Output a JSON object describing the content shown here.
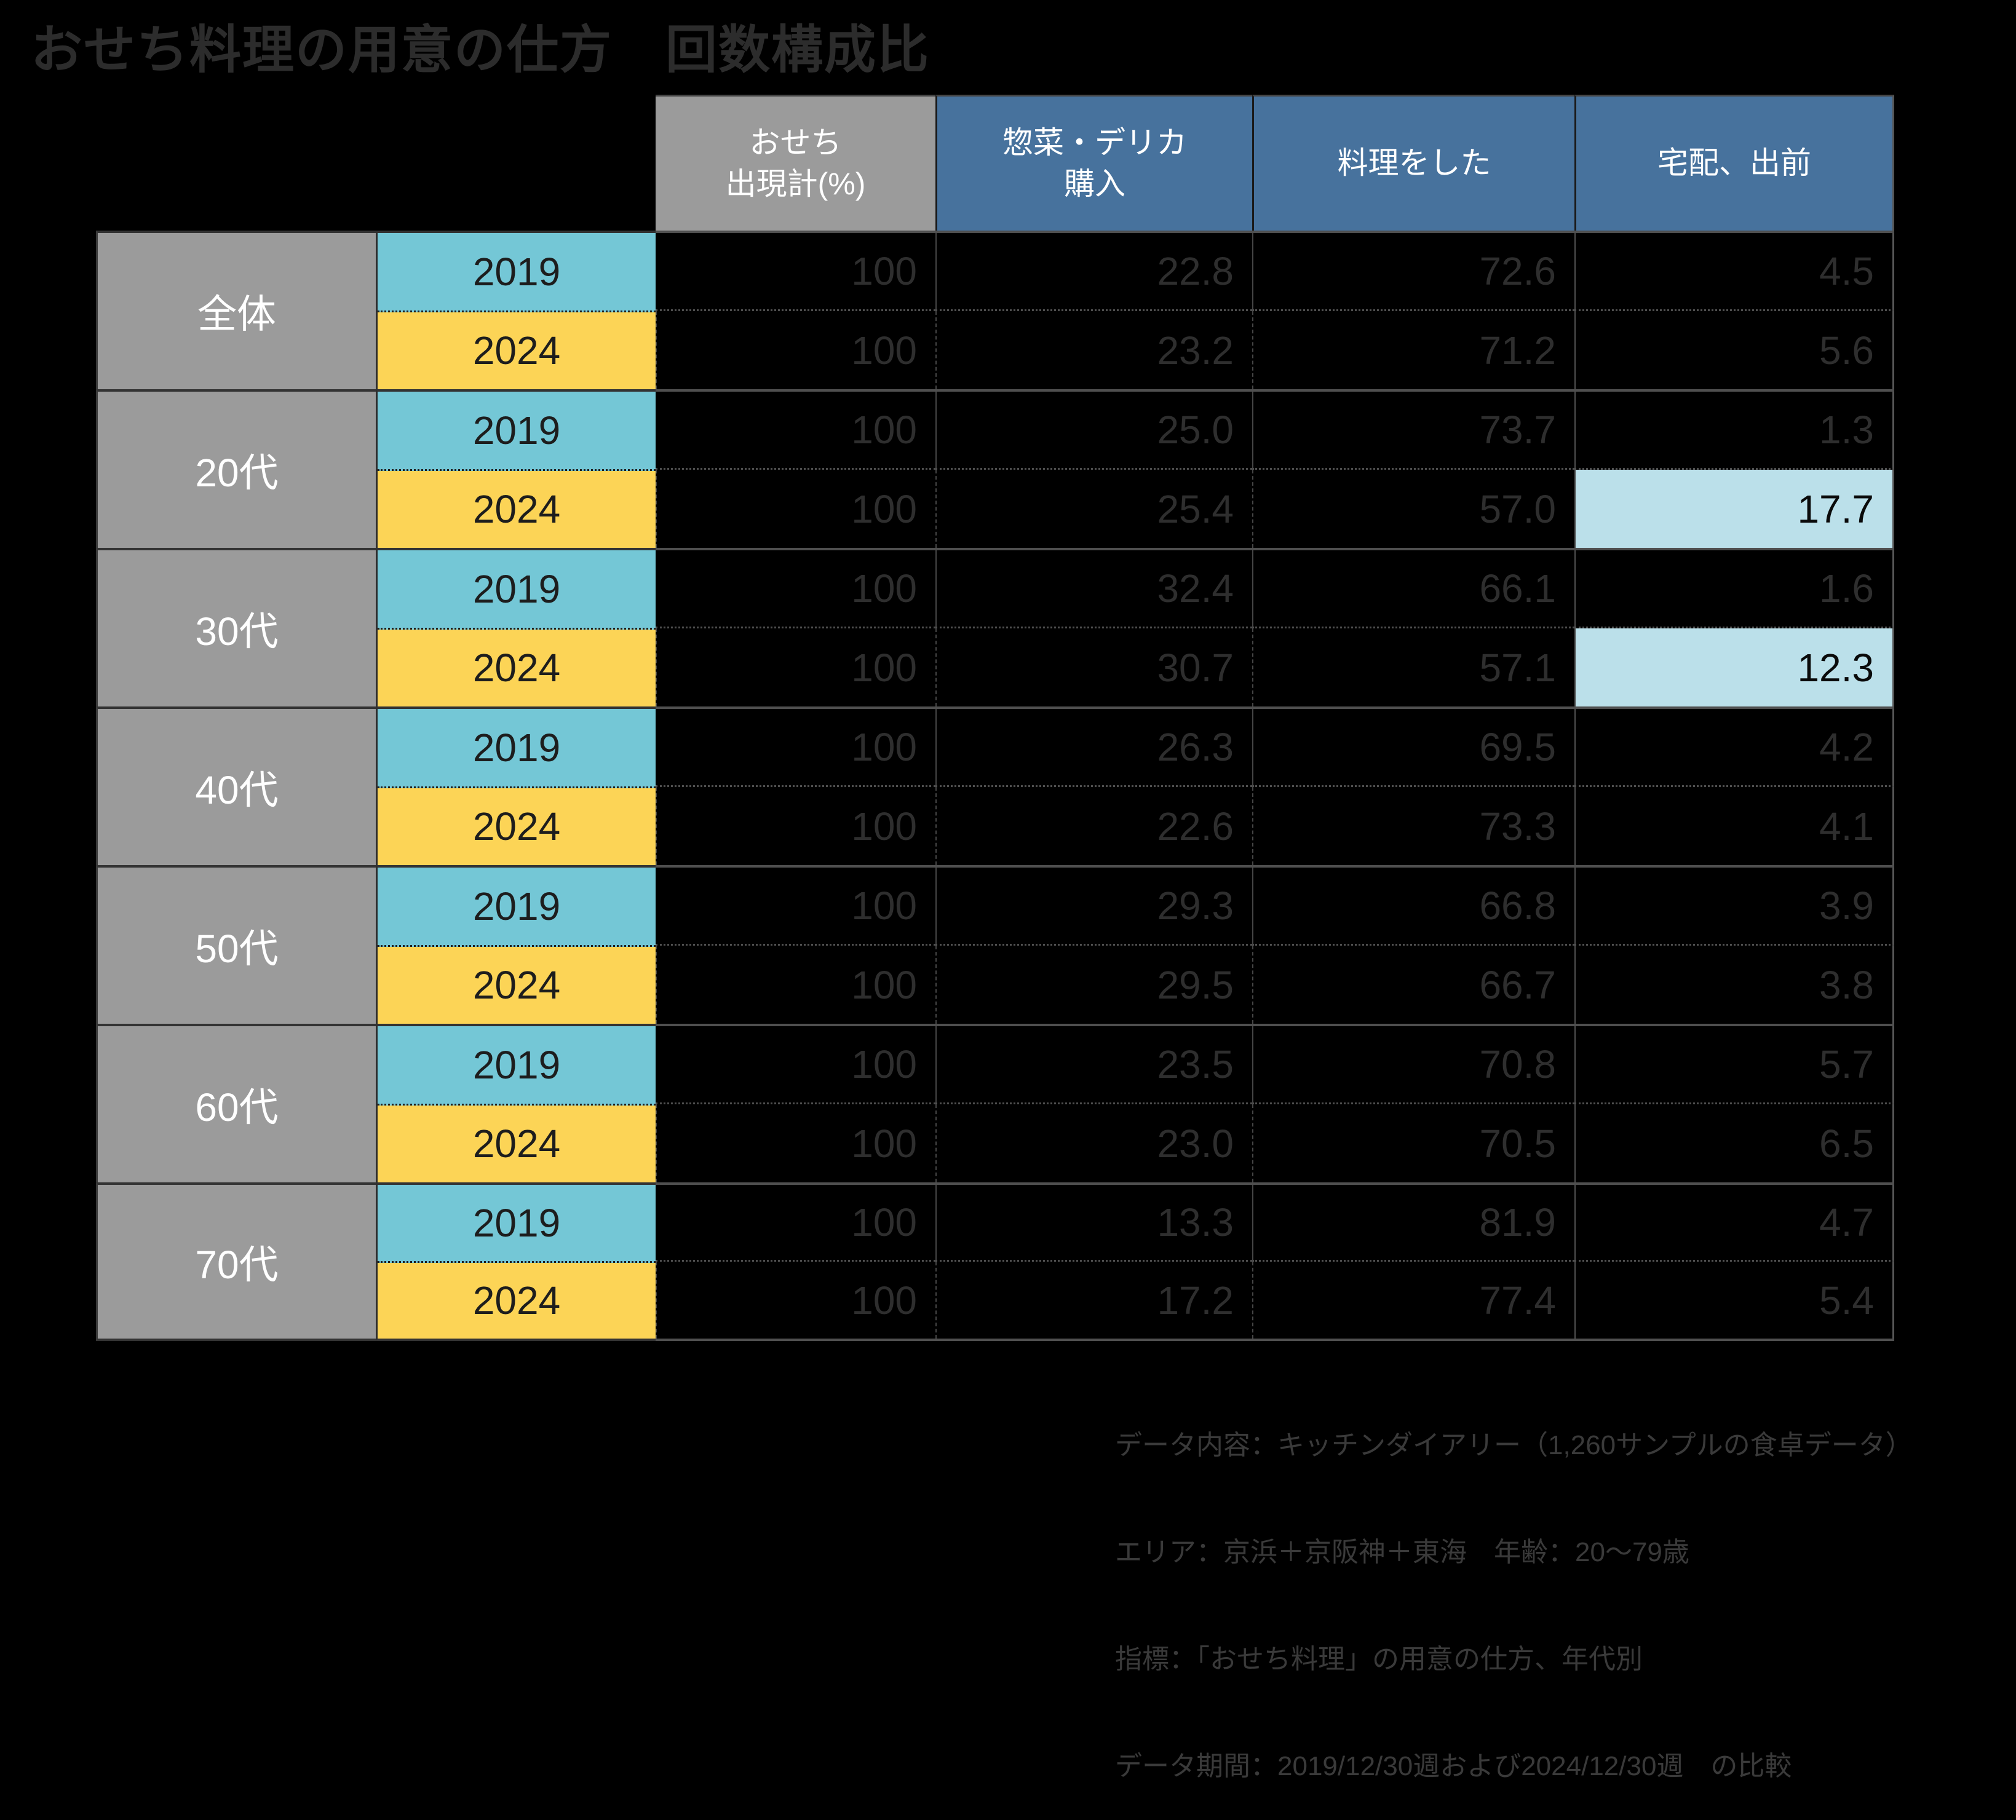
{
  "title": "おせち料理の用意の仕方　回数構成比",
  "colors": {
    "bg": "#000000",
    "title-text": "#2c2c2c",
    "gray": "#9b9b9b",
    "blue": "#47729d",
    "cyan": "#74c7d6",
    "yellow": "#fcd456",
    "highlight": "#bbe0ea",
    "num-text": "#2e2e2e",
    "note-text": "#3a3a3a"
  },
  "table": {
    "headers": [
      {
        "label": "おせち\n出現計(%)"
      },
      {
        "label": "惣菜・デリカ\n購入"
      },
      {
        "label": "料理をした"
      },
      {
        "label": "宅配、出前"
      }
    ],
    "groups": [
      {
        "label": "全体",
        "rows": [
          {
            "year": "2019",
            "values": [
              "100",
              "22.8",
              "72.6",
              "4.5"
            ]
          },
          {
            "year": "2024",
            "values": [
              "100",
              "23.2",
              "71.2",
              "5.6"
            ]
          }
        ]
      },
      {
        "label": "20代",
        "rows": [
          {
            "year": "2019",
            "values": [
              "100",
              "25.0",
              "73.7",
              "1.3"
            ]
          },
          {
            "year": "2024",
            "values": [
              "100",
              "25.4",
              "57.0",
              "17.7"
            ],
            "highlight_column": "宅配、出前"
          }
        ]
      },
      {
        "label": "30代",
        "rows": [
          {
            "year": "2019",
            "values": [
              "100",
              "32.4",
              "66.1",
              "1.6"
            ]
          },
          {
            "year": "2024",
            "values": [
              "100",
              "30.7",
              "57.1",
              "12.3"
            ],
            "highlight_column": "宅配、出前"
          }
        ]
      },
      {
        "label": "40代",
        "rows": [
          {
            "year": "2019",
            "values": [
              "100",
              "26.3",
              "69.5",
              "4.2"
            ]
          },
          {
            "year": "2024",
            "values": [
              "100",
              "22.6",
              "73.3",
              "4.1"
            ]
          }
        ]
      },
      {
        "label": "50代",
        "rows": [
          {
            "year": "2019",
            "values": [
              "100",
              "29.3",
              "66.8",
              "3.9"
            ]
          },
          {
            "year": "2024",
            "values": [
              "100",
              "29.5",
              "66.7",
              "3.8"
            ]
          }
        ]
      },
      {
        "label": "60代",
        "rows": [
          {
            "year": "2019",
            "values": [
              "100",
              "23.5",
              "70.8",
              "5.7"
            ]
          },
          {
            "year": "2024",
            "values": [
              "100",
              "23.0",
              "70.5",
              "6.5"
            ]
          }
        ]
      },
      {
        "label": "70代",
        "rows": [
          {
            "year": "2019",
            "values": [
              "100",
              "13.3",
              "81.9",
              "4.7"
            ]
          },
          {
            "year": "2024",
            "values": [
              "100",
              "17.2",
              "77.4",
              "5.4"
            ]
          }
        ]
      }
    ]
  },
  "footer": {
    "lines": [
      "データ内容：キッチンダイアリー（1,260サンプルの食卓データ）",
      "エリア：京浜＋京阪神＋東海　年齢：20～79歳",
      "指標：「おせち料理」の用意の仕方、年代別",
      "データ期間：2019/12/30週および2024/12/30週　の比較"
    ]
  },
  "chart_data": {
    "type": "table",
    "title": "おせち料理の用意の仕方　回数構成比",
    "columns": [
      "おせち出現計(%)",
      "惣菜・デリカ購入",
      "料理をした",
      "宅配、出前"
    ],
    "row_groups": [
      "全体",
      "20代",
      "30代",
      "40代",
      "50代",
      "60代",
      "70代"
    ],
    "years": [
      "2019",
      "2024"
    ],
    "rows": [
      {
        "group": "全体",
        "year": "2019",
        "values": [
          100,
          22.8,
          72.6,
          4.5
        ]
      },
      {
        "group": "全体",
        "year": "2024",
        "values": [
          100,
          23.2,
          71.2,
          5.6
        ]
      },
      {
        "group": "20代",
        "year": "2019",
        "values": [
          100,
          25.0,
          73.7,
          1.3
        ]
      },
      {
        "group": "20代",
        "year": "2024",
        "values": [
          100,
          25.4,
          57.0,
          17.7
        ]
      },
      {
        "group": "30代",
        "year": "2019",
        "values": [
          100,
          32.4,
          66.1,
          1.6
        ]
      },
      {
        "group": "30代",
        "year": "2024",
        "values": [
          100,
          30.7,
          57.1,
          12.3
        ]
      },
      {
        "group": "40代",
        "year": "2019",
        "values": [
          100,
          26.3,
          69.5,
          4.2
        ]
      },
      {
        "group": "40代",
        "year": "2024",
        "values": [
          100,
          22.6,
          73.3,
          4.1
        ]
      },
      {
        "group": "50代",
        "year": "2019",
        "values": [
          100,
          29.3,
          66.8,
          3.9
        ]
      },
      {
        "group": "50代",
        "year": "2024",
        "values": [
          100,
          29.5,
          66.7,
          3.8
        ]
      },
      {
        "group": "60代",
        "year": "2019",
        "values": [
          100,
          23.5,
          70.8,
          5.7
        ]
      },
      {
        "group": "60代",
        "year": "2024",
        "values": [
          100,
          23.0,
          70.5,
          6.5
        ]
      },
      {
        "group": "70代",
        "year": "2019",
        "values": [
          100,
          13.3,
          81.9,
          4.7
        ]
      },
      {
        "group": "70代",
        "year": "2024",
        "values": [
          100,
          17.2,
          77.4,
          5.4
        ]
      }
    ],
    "highlighted_cells": [
      {
        "group": "20代",
        "year": "2024",
        "column": "宅配、出前",
        "value": 17.7
      },
      {
        "group": "30代",
        "year": "2024",
        "column": "宅配、出前",
        "value": 12.3
      }
    ]
  }
}
